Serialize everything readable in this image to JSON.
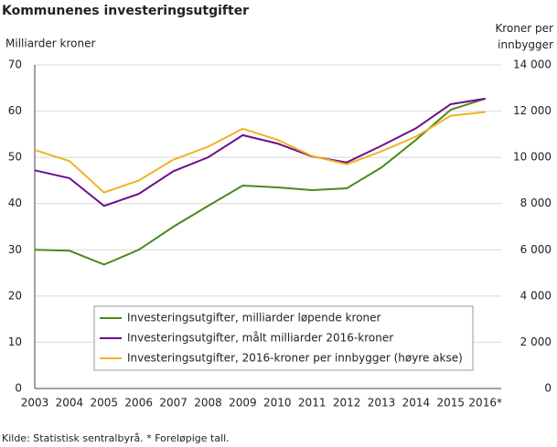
{
  "chart_data": {
    "type": "line",
    "title": "Kommunenes investeringsutgifter",
    "ylabel": "Milliarder  kroner",
    "y2label": "Kroner per innbygger",
    "source": "Kilde: Statistisk sentralbyrå. * Foreløpige tall.",
    "categories": [
      "2003",
      "2004",
      "2005",
      "2006",
      "2007",
      "2008",
      "2009",
      "2010",
      "2011",
      "2012",
      "2013",
      "2014",
      "2015",
      "2016*"
    ],
    "series": [
      {
        "name": "Investeringsutgifter, milliarder løpende kroner",
        "color": "#4a8a1a",
        "values": [
          30,
          29.8,
          26.8,
          30,
          35,
          39.5,
          43.9,
          43.5,
          42.9,
          43.3,
          47.8,
          53.8,
          60.3,
          62.7
        ]
      },
      {
        "name": "Investeringsutgifter, målt milliarder 2016-kroner",
        "color": "#6a0f8e",
        "values": [
          47.2,
          45.5,
          39.5,
          42.1,
          47,
          50,
          54.8,
          53,
          50.2,
          48.9,
          52.5,
          56.3,
          61.5,
          62.7
        ]
      },
      {
        "name": "Investeringsutgifter, 2016-kroner per innbygger (høyre akse)",
        "color": "#f0b323",
        "axis": "y2",
        "values": [
          10320,
          9840,
          8480,
          9000,
          9900,
          10460,
          11240,
          10760,
          10060,
          9700,
          10260,
          10900,
          11800,
          11960
        ]
      }
    ],
    "ylim": [
      0,
      70
    ],
    "yticks": [
      0,
      10,
      20,
      30,
      40,
      50,
      60,
      70
    ],
    "y2lim": [
      0,
      14000
    ],
    "y2ticks": [
      0,
      {
        "value": 2000,
        "label": "2 000"
      },
      {
        "value": 4000,
        "label": "4 000"
      },
      {
        "value": 6000,
        "label": "6 000"
      },
      {
        "value": 8000,
        "label": "8 000"
      },
      {
        "value": 10000,
        "label": "10 000"
      },
      {
        "value": 12000,
        "label": "12 000"
      },
      {
        "value": 14000,
        "label": "14 000"
      }
    ],
    "grid": true,
    "legend": "lower center"
  }
}
